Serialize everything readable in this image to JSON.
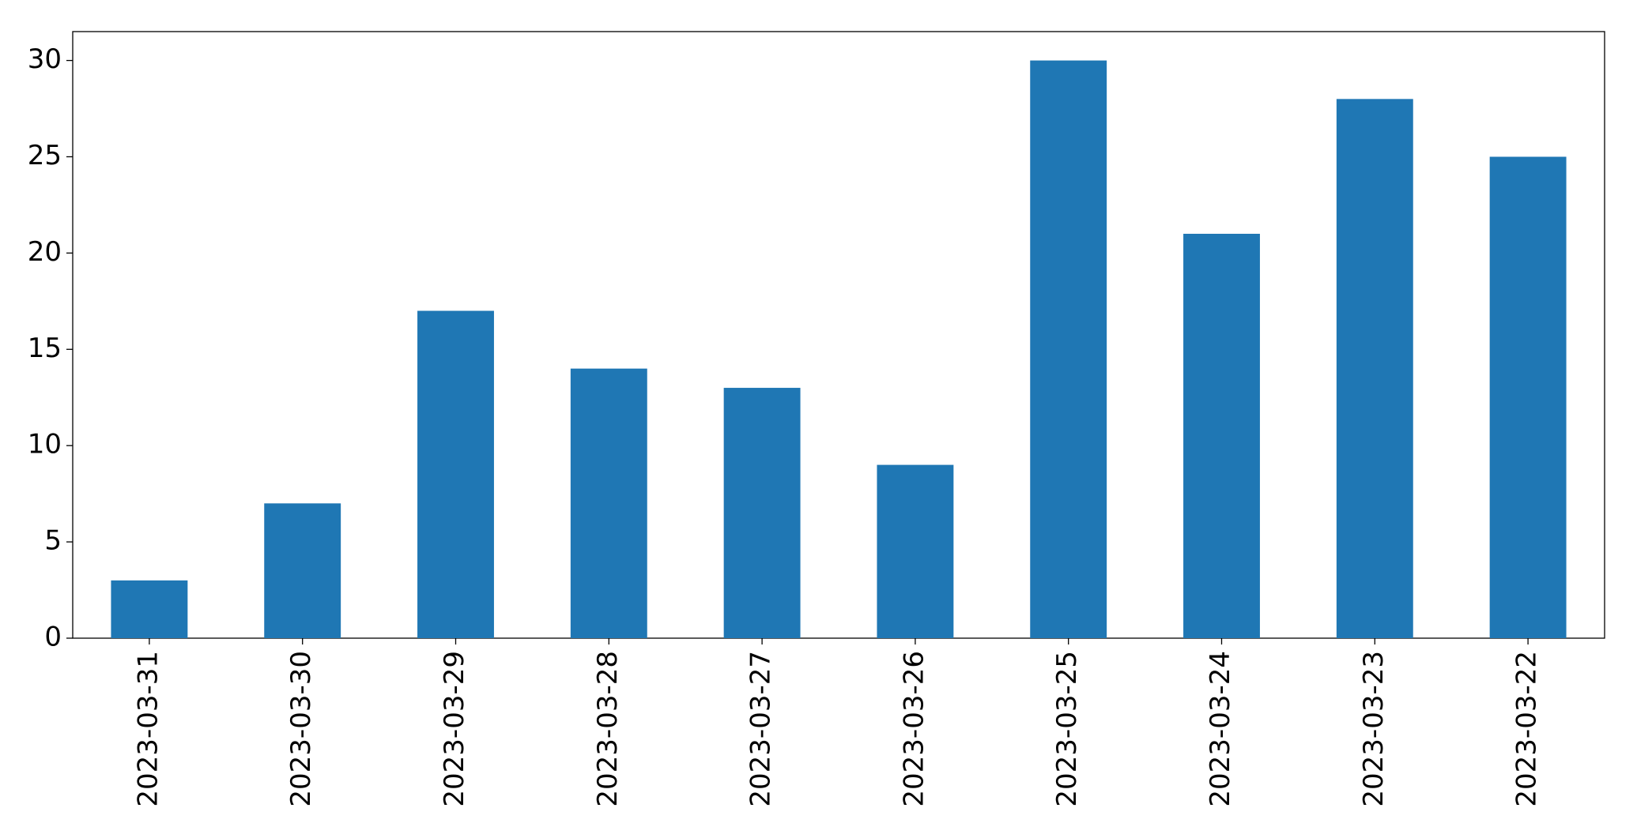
{
  "chart_data": {
    "type": "bar",
    "categories": [
      "2023-03-31",
      "2023-03-30",
      "2023-03-29",
      "2023-03-28",
      "2023-03-27",
      "2023-03-26",
      "2023-03-25",
      "2023-03-24",
      "2023-03-23",
      "2023-03-22"
    ],
    "values": [
      3,
      7,
      17,
      14,
      13,
      9,
      30,
      21,
      28,
      25
    ],
    "color": "#1f77b4",
    "ylim": [
      0,
      31.5
    ],
    "yticks": [
      0,
      5,
      10,
      15,
      20,
      25,
      30
    ],
    "grid": false
  }
}
